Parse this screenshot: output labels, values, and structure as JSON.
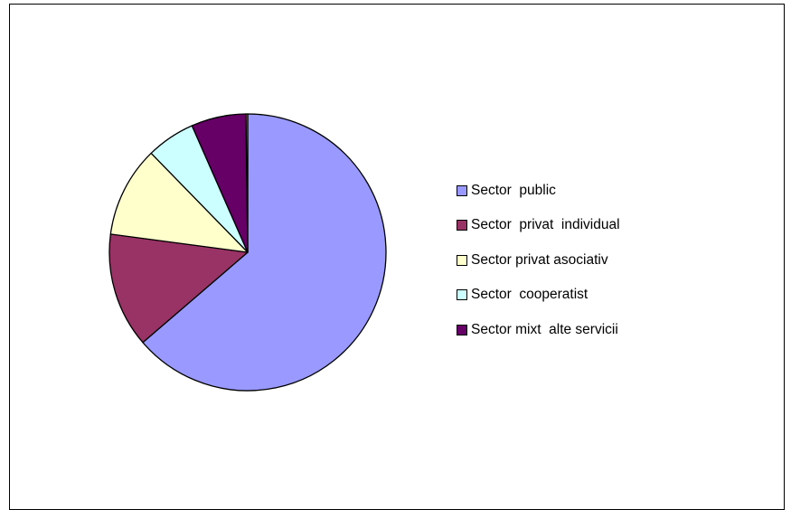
{
  "chart_data": {
    "type": "pie",
    "title": "",
    "start_angle_deg": 0,
    "direction": "clockwise",
    "slices": [
      {
        "label": "Sector  public",
        "value": 63.7,
        "color": "#9999FF"
      },
      {
        "label": "Sector  privat  individual",
        "value": 13.4,
        "color": "#993366"
      },
      {
        "label": "Sector privat asociativ",
        "value": 10.6,
        "color": "#FFFFCC"
      },
      {
        "label": "Sector  cooperatist",
        "value": 5.7,
        "color": "#CCFFFF"
      },
      {
        "label": "Sector mixt  alte servicii",
        "value": 6.4,
        "color": "#660066"
      },
      {
        "label": "",
        "value": 0.2,
        "color": "#FF8080"
      }
    ],
    "legend_position": "right"
  }
}
